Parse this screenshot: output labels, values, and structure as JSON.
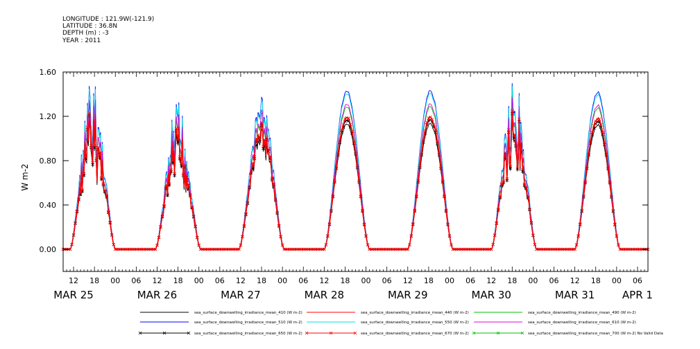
{
  "header": {
    "longitude": "LONGITUDE : 121.9W(-121.9)",
    "latitude": "LATITUDE : 36.8N",
    "depth": "DEPTH (m) : -3",
    "year": "YEAR : 2011"
  },
  "chart_data": {
    "type": "line",
    "title": "",
    "xlabel": "",
    "ylabel": "W m-2",
    "ylim": [
      -0.2,
      1.6
    ],
    "yticks": [
      0.0,
      0.4,
      0.8,
      1.2,
      1.6
    ],
    "ytick_labels": [
      "0.00",
      "0.40",
      "0.80",
      "1.20",
      "1.60"
    ],
    "x_unit": "hours since 2011-03-24 00:00",
    "xlim": [
      9,
      177
    ],
    "x_hour_ticks": [
      {
        "x": 12,
        "label": "12"
      },
      {
        "x": 18,
        "label": "18"
      },
      {
        "x": 24,
        "label": "00"
      },
      {
        "x": 30,
        "label": "06"
      },
      {
        "x": 36,
        "label": "12"
      },
      {
        "x": 42,
        "label": "18"
      },
      {
        "x": 48,
        "label": "00"
      },
      {
        "x": 54,
        "label": "06"
      },
      {
        "x": 60,
        "label": "12"
      },
      {
        "x": 66,
        "label": "18"
      },
      {
        "x": 72,
        "label": "00"
      },
      {
        "x": 78,
        "label": "06"
      },
      {
        "x": 84,
        "label": "12"
      },
      {
        "x": 90,
        "label": "18"
      },
      {
        "x": 96,
        "label": "00"
      },
      {
        "x": 102,
        "label": "06"
      },
      {
        "x": 108,
        "label": "12"
      },
      {
        "x": 114,
        "label": "18"
      },
      {
        "x": 120,
        "label": "00"
      },
      {
        "x": 126,
        "label": "06"
      },
      {
        "x": 132,
        "label": "12"
      },
      {
        "x": 138,
        "label": "18"
      },
      {
        "x": 144,
        "label": "00"
      },
      {
        "x": 150,
        "label": "06"
      },
      {
        "x": 156,
        "label": "12"
      },
      {
        "x": 162,
        "label": "18"
      },
      {
        "x": 168,
        "label": "00"
      },
      {
        "x": 174,
        "label": "06"
      }
    ],
    "x_date_labels": [
      {
        "x": 12,
        "label": "MAR 25"
      },
      {
        "x": 36,
        "label": "MAR 26"
      },
      {
        "x": 60,
        "label": "MAR 27"
      },
      {
        "x": 84,
        "label": "MAR 28"
      },
      {
        "x": 108,
        "label": "MAR 29"
      },
      {
        "x": 132,
        "label": "MAR 30"
      },
      {
        "x": 156,
        "label": "MAR 31"
      },
      {
        "x": 174,
        "label": "APR  1"
      }
    ],
    "grid": false,
    "legend_position": "bottom",
    "days": [
      {
        "center": 17.5,
        "half_width": 6.5,
        "peak": 1.28,
        "variability": "high"
      },
      {
        "center": 42.0,
        "half_width": 6.5,
        "peak": 1.1,
        "variability": "high"
      },
      {
        "center": 66.0,
        "half_width": 6.5,
        "peak": 1.15,
        "variability": "medium"
      },
      {
        "center": 90.5,
        "half_width": 6.5,
        "peak": 1.2,
        "variability": "low"
      },
      {
        "center": 114.5,
        "half_width": 6.5,
        "peak": 1.2,
        "variability": "low"
      },
      {
        "center": 138.5,
        "half_width": 6.5,
        "peak": 1.3,
        "variability": "high"
      },
      {
        "center": 162.5,
        "half_width": 6.5,
        "peak": 1.19,
        "variability": "low"
      }
    ],
    "series": [
      {
        "name": "sea_surface_downwelling_irradiance_mean_410 (W m-2)",
        "color": "#000000",
        "scale": 0.95,
        "marker": "none"
      },
      {
        "name": "sea_surface_downwelling_irradiance_mean_440 (W m-2)",
        "color": "#ff0000",
        "scale": 1.0,
        "marker": "none"
      },
      {
        "name": "sea_surface_downwelling_irradiance_mean_490 (W m-2)",
        "color": "#00c000",
        "scale": 1.08,
        "marker": "none"
      },
      {
        "name": "sea_surface_downwelling_irradiance_mean_510 (W m-2)",
        "color": "#0000ff",
        "scale": 1.2,
        "marker": "none"
      },
      {
        "name": "sea_surface_downwelling_irradiance_mean_550 (W m-2)",
        "color": "#00e0e0",
        "scale": 1.18,
        "marker": "none"
      },
      {
        "name": "sea_surface_downwelling_irradiance_mean_610 (W m-2)",
        "color": "#e000e0",
        "scale": 1.1,
        "marker": "none"
      },
      {
        "name": "sea_surface_downwelling_irradiance_mean_650 (W m-2)",
        "color": "#000000",
        "scale": 0.98,
        "marker": "x"
      },
      {
        "name": "sea_surface_downwelling_irradiance_mean_670 (W m-2)",
        "color": "#ff0000",
        "scale": 1.0,
        "marker": "x"
      },
      {
        "name": "sea_surface_downwelling_irradiance_mean_700 (W m-2) No Valid Data",
        "color": "#00c000",
        "scale": 0,
        "marker": "x"
      }
    ]
  }
}
